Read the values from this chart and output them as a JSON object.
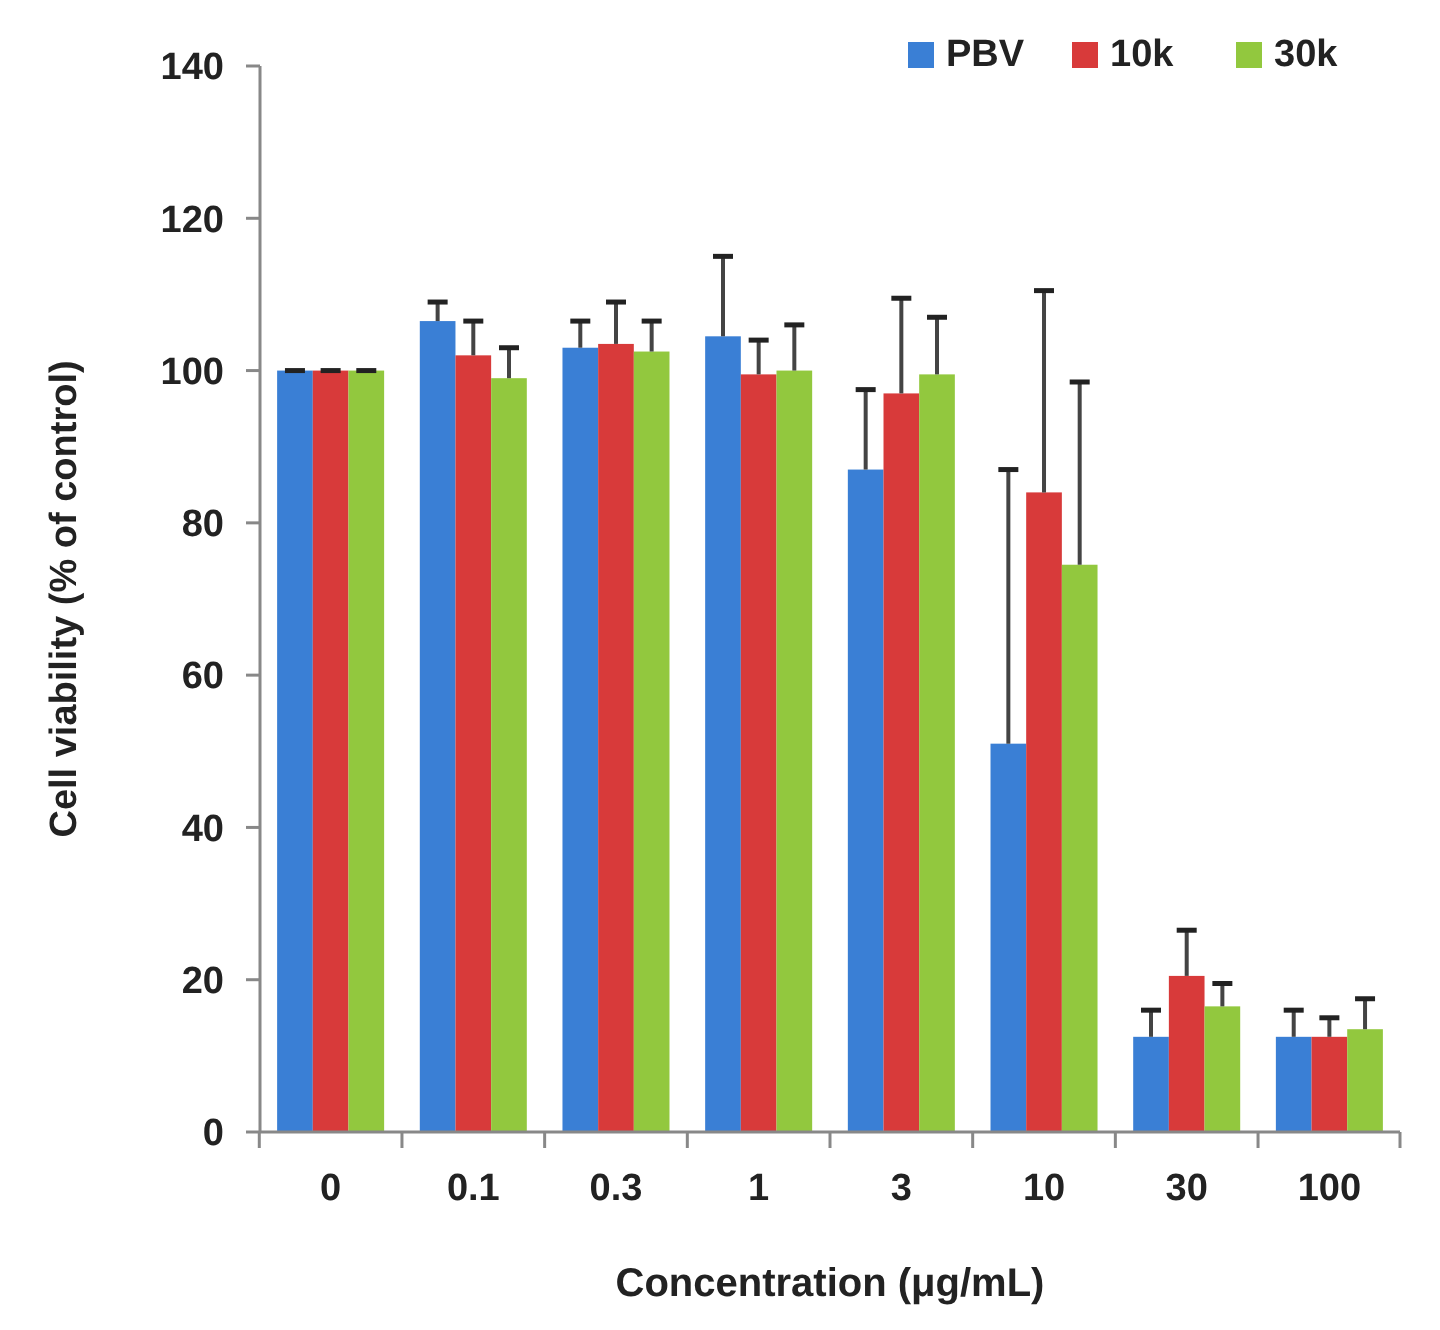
{
  "chart_data": {
    "type": "bar",
    "xlabel": "Concentration (μg/mL)",
    "ylabel": "Cell viability (% of control)",
    "categories": [
      "0",
      "0.1",
      "0.3",
      "1",
      "3",
      "10",
      "30",
      "100"
    ],
    "ylim": [
      0,
      140
    ],
    "yticks": [
      0,
      20,
      40,
      60,
      80,
      100,
      120,
      140
    ],
    "grid": false,
    "legend": "top right",
    "series": [
      {
        "name": "PBV",
        "color": "#3a7fd5",
        "values": [
          100,
          106.5,
          103,
          104.5,
          87,
          51,
          12.5,
          12.5
        ],
        "errors": [
          [
            100,
            100
          ],
          [
            106.5,
            109
          ],
          [
            103,
            106.5
          ],
          [
            104.5,
            115
          ],
          [
            87,
            97.5
          ],
          [
            51,
            87
          ],
          [
            12.5,
            16
          ],
          [
            12.5,
            16
          ]
        ]
      },
      {
        "name": "10k",
        "color": "#d83a3a",
        "values": [
          100,
          102,
          103.5,
          99.5,
          97,
          84,
          20.5,
          12.5
        ],
        "errors": [
          [
            100,
            100
          ],
          [
            102,
            106.5
          ],
          [
            103.5,
            109
          ],
          [
            99.5,
            104
          ],
          [
            97,
            109.5
          ],
          [
            84,
            110.5
          ],
          [
            20.5,
            26.5
          ],
          [
            12.5,
            15
          ]
        ]
      },
      {
        "name": "30k",
        "color": "#92c83e",
        "values": [
          100,
          99,
          102.5,
          100,
          99.5,
          74.5,
          16.5,
          13.5
        ],
        "errors": [
          [
            100,
            100
          ],
          [
            99,
            103
          ],
          [
            102.5,
            106.5
          ],
          [
            100,
            106
          ],
          [
            99.5,
            107
          ],
          [
            74.5,
            98.5
          ],
          [
            16.5,
            19.5
          ],
          [
            13.5,
            17.5
          ]
        ]
      }
    ]
  }
}
